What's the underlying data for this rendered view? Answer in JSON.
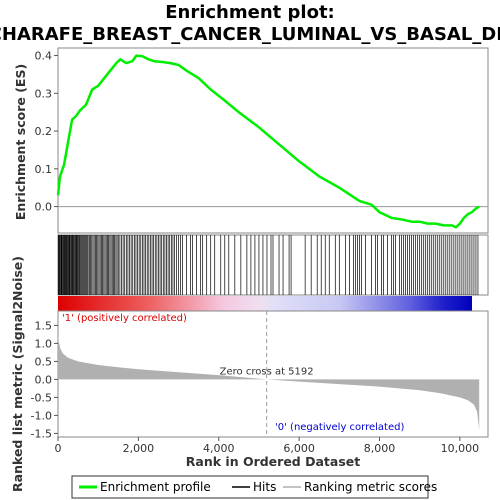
{
  "chart_data": {
    "type": "line",
    "title_line1": "Enrichment plot:",
    "title_line2": "CHARAFE_BREAST_CANCER_LUMINAL_VS_BASAL_DN",
    "x_label": "Rank in Ordered Dataset",
    "x_range": [
      0,
      10700
    ],
    "x_ticks": [
      0,
      2000,
      4000,
      6000,
      8000,
      10000
    ],
    "x_tick_labels": [
      "0",
      "2,000",
      "4,000",
      "6,000",
      "8,000",
      "10,000"
    ],
    "es_panel": {
      "y_label": "Enrichment score (ES)",
      "y_range": [
        -0.07,
        0.42
      ],
      "y_ticks": [
        0.0,
        0.1,
        0.2,
        0.3,
        0.4
      ],
      "y_tick_labels": [
        "0.0",
        "0.1",
        "0.2",
        "0.3",
        "0.4"
      ],
      "series_name": "Enrichment profile",
      "color": "#00ee00",
      "x": [
        0,
        50,
        150,
        250,
        350,
        450,
        550,
        700,
        850,
        1000,
        1150,
        1300,
        1450,
        1550,
        1700,
        1850,
        1950,
        2100,
        2250,
        2400,
        2600,
        2800,
        3000,
        3200,
        3500,
        3800,
        4100,
        4500,
        5000,
        5500,
        6000,
        6500,
        7000,
        7500,
        7800,
        8000,
        8300,
        8600,
        8800,
        9000,
        9200,
        9400,
        9600,
        9800,
        9900,
        10000,
        10100,
        10200,
        10300,
        10400,
        10480
      ],
      "y": [
        0.03,
        0.08,
        0.11,
        0.17,
        0.23,
        0.24,
        0.255,
        0.27,
        0.31,
        0.32,
        0.34,
        0.36,
        0.38,
        0.39,
        0.38,
        0.385,
        0.4,
        0.398,
        0.39,
        0.385,
        0.383,
        0.38,
        0.375,
        0.36,
        0.34,
        0.31,
        0.285,
        0.25,
        0.21,
        0.165,
        0.12,
        0.08,
        0.05,
        0.015,
        0.005,
        -0.015,
        -0.03,
        -0.035,
        -0.04,
        -0.04,
        -0.045,
        -0.045,
        -0.05,
        -0.05,
        -0.055,
        -0.045,
        -0.03,
        -0.02,
        -0.015,
        -0.005,
        0.0
      ]
    },
    "hits_panel": {
      "series_name": "Hits",
      "color": "#000000",
      "hit_ranks": [
        10,
        25,
        40,
        60,
        80,
        95,
        110,
        130,
        150,
        170,
        185,
        200,
        220,
        240,
        260,
        275,
        290,
        310,
        330,
        350,
        370,
        390,
        410,
        430,
        450,
        470,
        490,
        510,
        530,
        550,
        575,
        600,
        625,
        650,
        675,
        700,
        725,
        750,
        780,
        810,
        840,
        870,
        900,
        930,
        960,
        990,
        1020,
        1050,
        1080,
        1110,
        1140,
        1170,
        1200,
        1230,
        1260,
        1290,
        1320,
        1350,
        1380,
        1410,
        1440,
        1470,
        1500,
        1540,
        1580,
        1620,
        1660,
        1700,
        1740,
        1780,
        1820,
        1860,
        1900,
        1940,
        1980,
        2020,
        2060,
        2100,
        2140,
        2180,
        2220,
        2260,
        2300,
        2340,
        2380,
        2420,
        2460,
        2500,
        2540,
        2580,
        2620,
        2660,
        2700,
        2740,
        2780,
        2820,
        2860,
        2900,
        2950,
        3000,
        3050,
        3100,
        3200,
        3300,
        3350,
        3450,
        3550,
        3600,
        3700,
        3800,
        3900,
        4050,
        4150,
        4250,
        4400,
        4550,
        4700,
        4800,
        4900,
        5000,
        5100,
        5200,
        5300,
        5350,
        5500,
        5600,
        5750,
        5800,
        6150,
        6300,
        6450,
        6550,
        6650,
        6750,
        6900,
        7000,
        7150,
        7250,
        7350,
        7400,
        7450,
        7500,
        7550,
        7650,
        7800,
        7900,
        7950,
        8050,
        8100,
        8200,
        8300,
        8350,
        8400,
        8500,
        8550,
        8600,
        8650,
        8700,
        8750,
        8800,
        8850,
        8900,
        8950,
        9000,
        9050,
        9100,
        9150,
        9200,
        9250,
        9300,
        9350,
        9400,
        9450,
        9500,
        9550,
        9600,
        9650,
        9700,
        9750,
        9800,
        9850,
        9900,
        9950,
        10000,
        10050,
        10100,
        10150,
        10200,
        10250,
        10300,
        10350,
        10400,
        10450
      ]
    },
    "heat_bar": {
      "neg_start_rank": 5192,
      "pos_color": "#ee0000",
      "neg_color": "#0000cc"
    },
    "metric_panel": {
      "y_label": "Ranked list metric (Signal2Noise)",
      "y_range": [
        -1.6,
        1.9
      ],
      "y_ticks": [
        -1.5,
        -1.0,
        -0.5,
        0.0,
        0.5,
        1.0,
        1.5
      ],
      "y_tick_labels": [
        "-1.5",
        "-1.0",
        "-0.5",
        "0.0",
        "0.5",
        "1.0",
        "1.5"
      ],
      "series_name": "Ranking metric scores",
      "color": "#b0b0b0",
      "x": [
        0,
        20,
        60,
        120,
        250,
        500,
        1000,
        1500,
        2000,
        3000,
        4000,
        5192,
        6000,
        7000,
        8000,
        9000,
        9500,
        10000,
        10200,
        10350,
        10430,
        10480
      ],
      "y": [
        1.3,
        1.05,
        0.85,
        0.72,
        0.6,
        0.5,
        0.4,
        0.34,
        0.28,
        0.2,
        0.12,
        0.0,
        -0.06,
        -0.13,
        -0.2,
        -0.3,
        -0.38,
        -0.5,
        -0.58,
        -0.7,
        -0.9,
        -1.4
      ],
      "zero_cross_rank": 5192,
      "zero_cross_label": "Zero cross at 5192",
      "pos_label": "'1' (positively correlated)",
      "pos_label_color": "#dd0000",
      "neg_label": "'0' (negatively correlated)",
      "neg_label_color": "#0000cc"
    },
    "legend": {
      "items": [
        "Enrichment profile",
        "Hits",
        "Ranking metric scores"
      ],
      "placement": "bottom"
    }
  }
}
